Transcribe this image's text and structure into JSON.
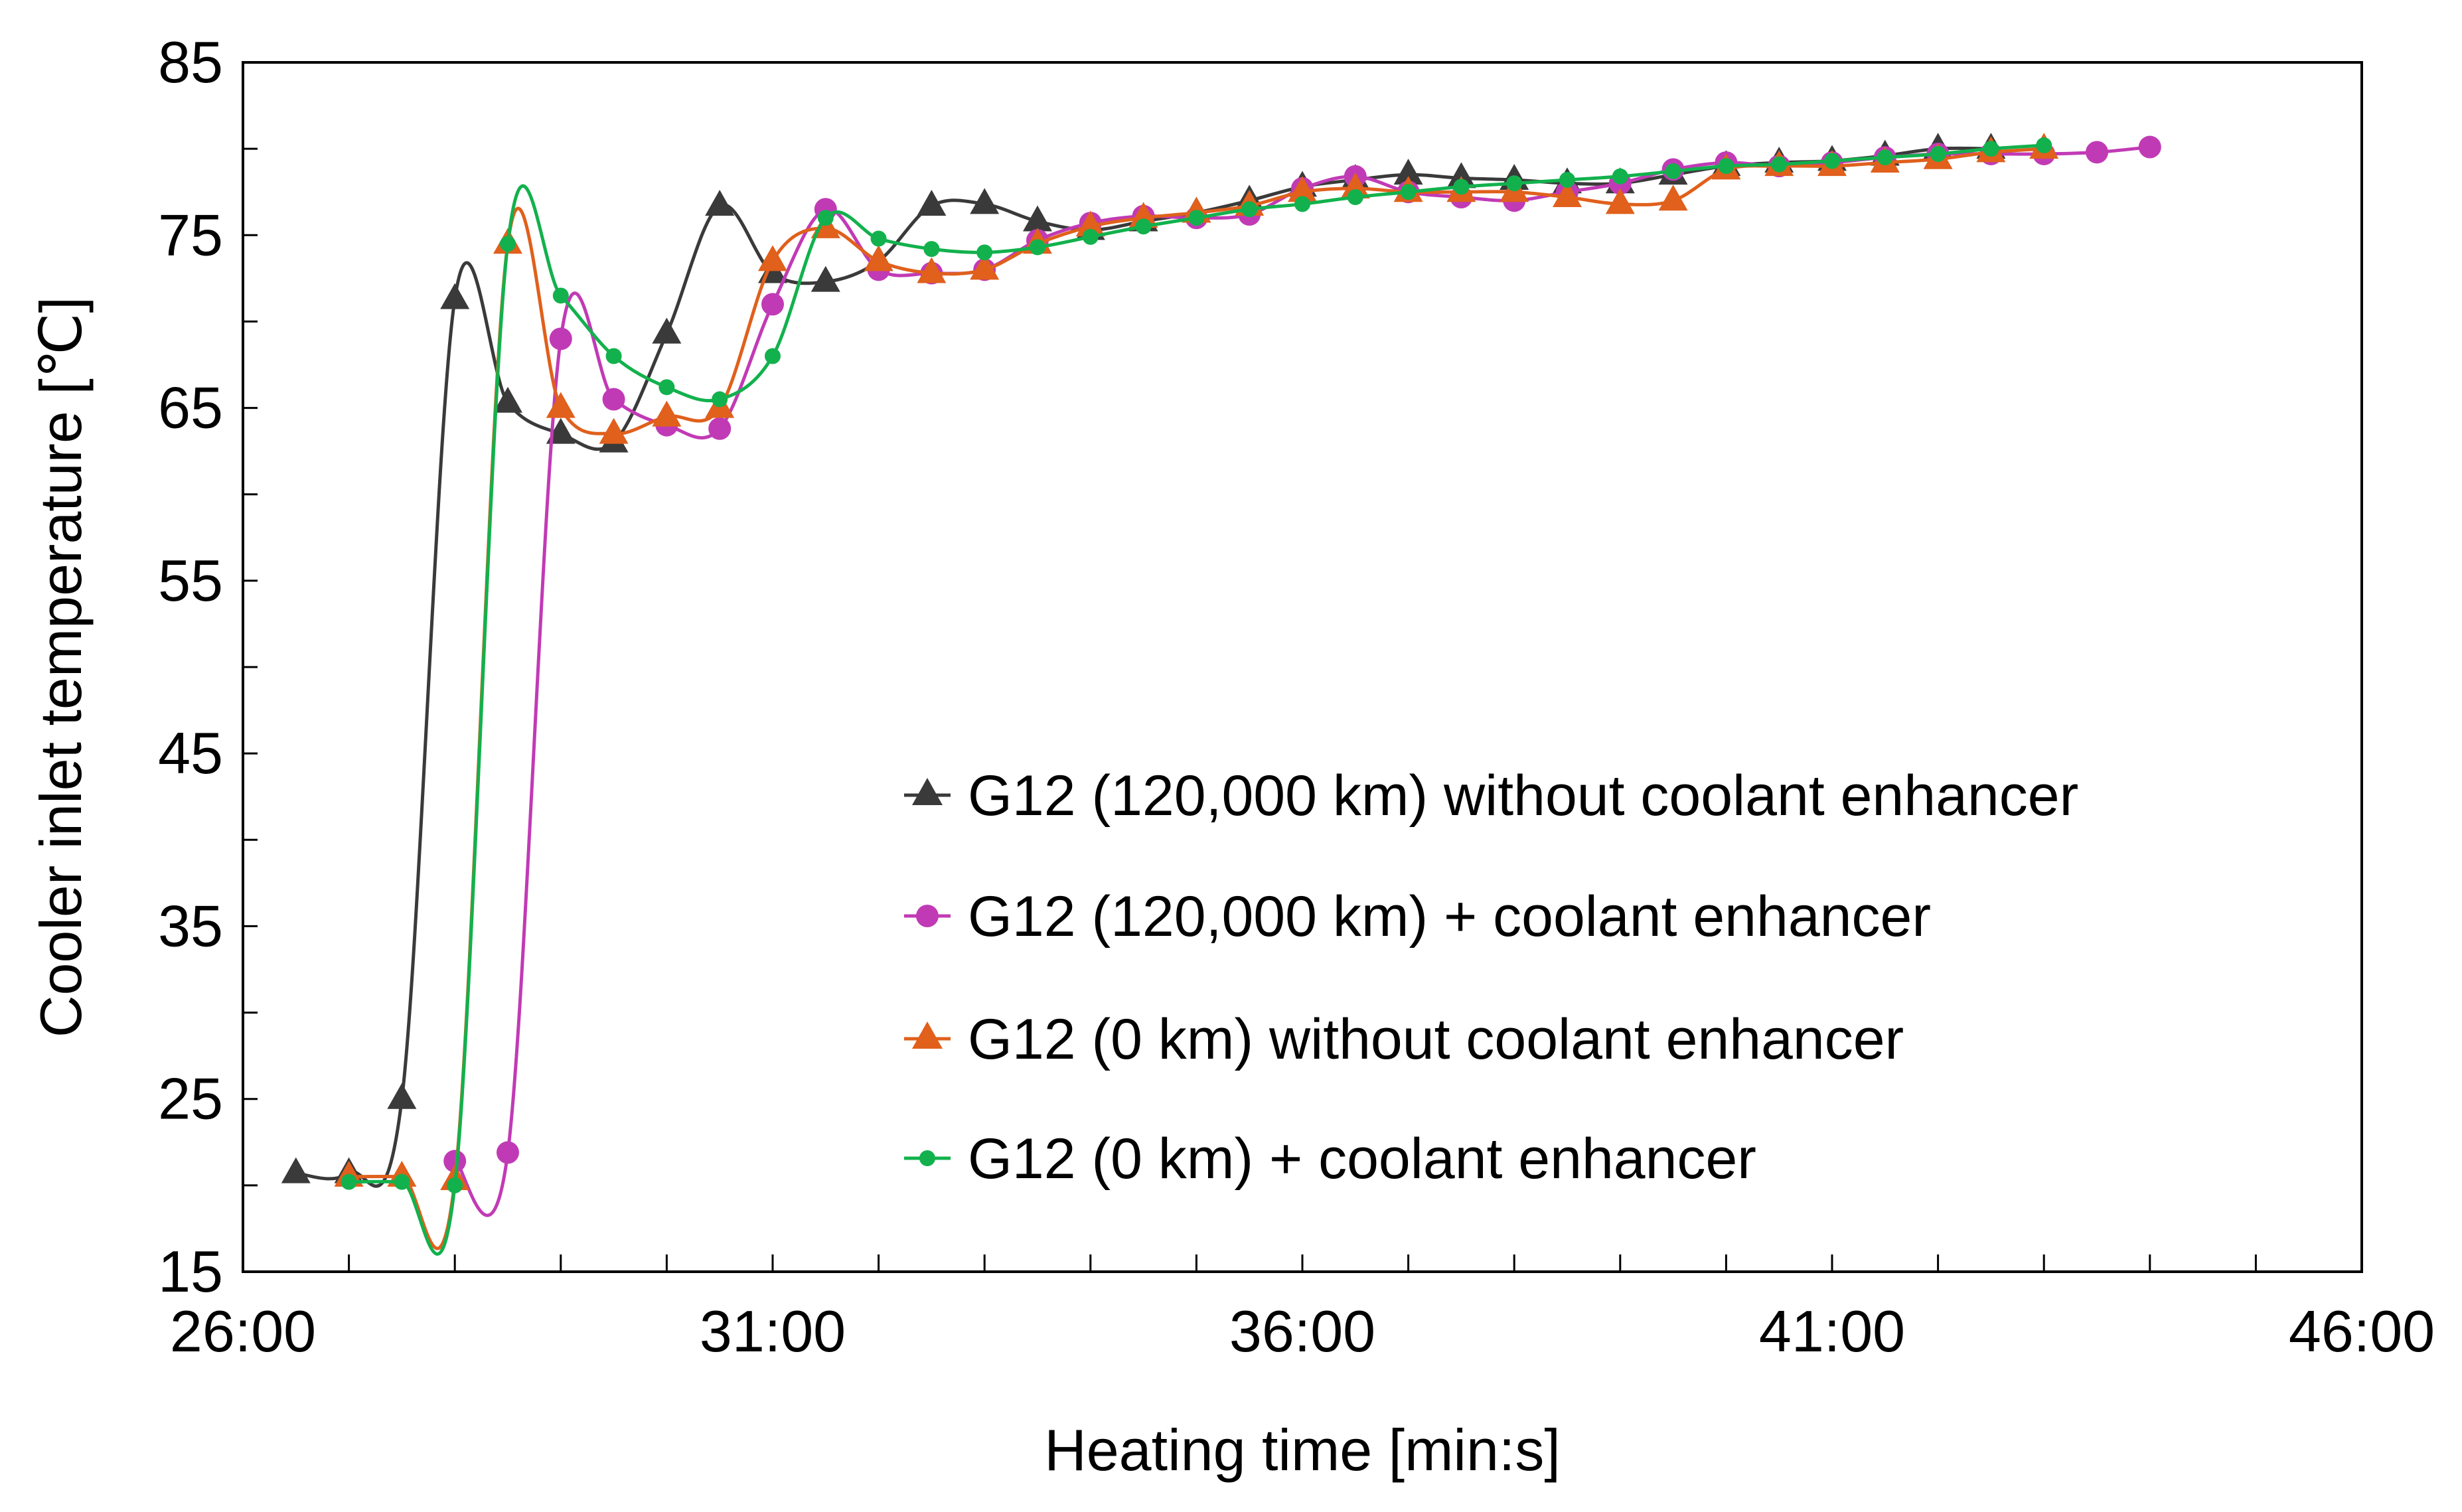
{
  "chart_data": {
    "type": "line",
    "title": "",
    "xlabel": "Heating time [min:s]",
    "ylabel": "Cooler inlet temperature [℃]",
    "xlim": [
      26,
      46
    ],
    "ylim": [
      15,
      85
    ],
    "x_ticks": [
      26,
      31,
      36,
      41,
      46
    ],
    "x_tick_labels": [
      "26:00",
      "31:00",
      "36:00",
      "41:00",
      "46:00"
    ],
    "y_ticks": [
      15,
      25,
      35,
      45,
      55,
      65,
      75,
      85
    ],
    "y_tick_labels": [
      "15",
      "25",
      "35",
      "45",
      "55",
      "65",
      "75",
      "85"
    ],
    "legend_position": "lower-right",
    "series": [
      {
        "name": "G12 (120,000 km) without coolant enhancer",
        "color": "#3a3a3a",
        "marker": "triangle",
        "x": [
          26.5,
          27.0,
          27.5,
          28.0,
          28.5,
          29.0,
          29.5,
          30.0,
          30.5,
          31.0,
          31.5,
          32.0,
          32.5,
          33.0,
          33.5,
          34.0,
          34.5,
          35.0,
          35.5,
          36.0,
          36.5,
          37.0,
          37.5,
          38.0,
          38.5,
          39.0,
          39.5,
          40.0,
          40.5,
          41.0,
          41.5,
          42.0,
          42.5
        ],
        "y": [
          20.7,
          20.7,
          25.0,
          71.3,
          65.3,
          63.5,
          63.0,
          69.3,
          76.7,
          72.8,
          72.3,
          73.5,
          76.7,
          76.8,
          75.8,
          75.3,
          75.8,
          76.3,
          77.0,
          77.8,
          78.2,
          78.5,
          78.3,
          78.2,
          78.0,
          78.0,
          78.5,
          79.0,
          79.2,
          79.3,
          79.6,
          80.0,
          80.0
        ]
      },
      {
        "name": "G12 (120,000 km) + coolant enhancer",
        "color": "#c13ab5",
        "marker": "circle",
        "x": [
          28.0,
          28.5,
          29.0,
          29.5,
          30.0,
          30.5,
          31.0,
          31.5,
          32.0,
          32.5,
          33.0,
          33.5,
          34.0,
          34.5,
          35.0,
          35.5,
          36.0,
          36.5,
          37.0,
          37.5,
          38.0,
          38.5,
          39.0,
          39.5,
          40.0,
          40.5,
          41.0,
          41.5,
          42.0,
          42.5,
          43.0,
          43.5,
          44.0
        ],
        "y": [
          21.4,
          21.9,
          69.0,
          65.5,
          64.0,
          63.8,
          71.0,
          76.5,
          73.0,
          72.8,
          73.0,
          74.7,
          75.7,
          76.1,
          76.0,
          76.2,
          77.7,
          78.4,
          77.5,
          77.2,
          77.0,
          77.5,
          78.0,
          78.8,
          79.2,
          79.0,
          79.2,
          79.5,
          79.7,
          79.7,
          79.7,
          79.8,
          80.1
        ]
      },
      {
        "name": "G12 (0 km) without coolant enhancer",
        "color": "#e0601c",
        "marker": "triangle",
        "x": [
          27.0,
          27.5,
          28.0,
          28.5,
          29.0,
          29.5,
          30.0,
          30.5,
          31.0,
          31.5,
          32.0,
          32.5,
          33.0,
          33.5,
          34.0,
          34.5,
          35.0,
          35.5,
          36.0,
          36.5,
          37.0,
          37.5,
          38.0,
          38.5,
          39.0,
          39.5,
          40.0,
          40.5,
          41.0,
          41.5,
          42.0,
          42.5,
          43.0
        ],
        "y": [
          20.5,
          20.5,
          20.3,
          74.5,
          65.0,
          63.5,
          64.5,
          65.0,
          73.5,
          75.4,
          73.5,
          72.8,
          73.0,
          74.5,
          75.5,
          76.0,
          76.3,
          76.7,
          77.5,
          77.7,
          77.5,
          77.5,
          77.5,
          77.2,
          76.8,
          77.0,
          78.8,
          79.0,
          79.0,
          79.2,
          79.4,
          79.8,
          80.0
        ]
      },
      {
        "name": "G12 (0 km) + coolant enhancer",
        "color": "#12b14d",
        "marker": "dot",
        "x": [
          27.0,
          27.5,
          28.0,
          28.5,
          29.0,
          29.5,
          30.0,
          30.5,
          31.0,
          31.5,
          32.0,
          32.5,
          33.0,
          33.5,
          34.0,
          34.5,
          35.0,
          35.5,
          36.0,
          36.5,
          37.0,
          37.5,
          38.0,
          38.5,
          39.0,
          39.5,
          40.0,
          40.5,
          41.0,
          41.5,
          42.0,
          42.5,
          43.0
        ],
        "y": [
          20.2,
          20.2,
          20.0,
          74.5,
          71.5,
          68.0,
          66.2,
          65.5,
          68.0,
          76.0,
          74.8,
          74.2,
          74.0,
          74.3,
          74.9,
          75.5,
          76.0,
          76.5,
          76.8,
          77.2,
          77.5,
          77.8,
          78.0,
          78.2,
          78.4,
          78.7,
          79.0,
          79.1,
          79.3,
          79.5,
          79.7,
          80.0,
          80.2
        ]
      }
    ]
  }
}
